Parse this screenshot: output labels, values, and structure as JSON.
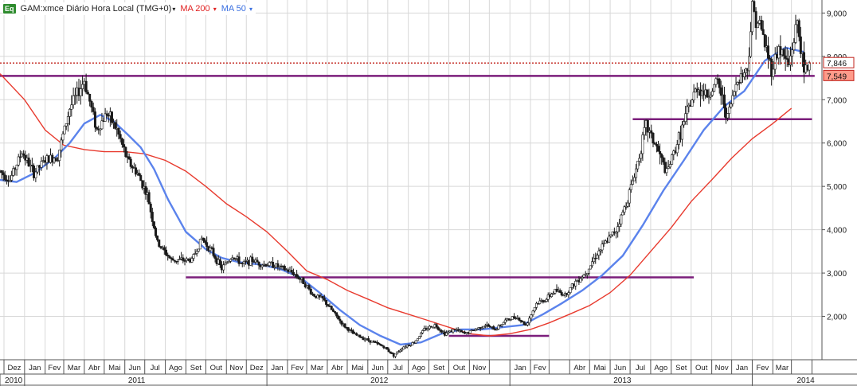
{
  "header": {
    "badge": "Eq",
    "title": "GAM:xmce Diário Hora Local (TMG+0)",
    "ma200_label": "MA 200",
    "ma50_label": "MA 50",
    "caret": "▾"
  },
  "colors": {
    "price_bar": "#1a1a1a",
    "ma200": "#e83a2e",
    "ma50": "#5b83ec",
    "hline": "#7b1e7b",
    "last_price_dotted": "#c0201a",
    "last_price_label_bg": "#ff9b8a",
    "gridline": "#d8d8d8"
  },
  "chart_data": {
    "type": "line",
    "series_kind": "ohlc-price-with-moving-averages",
    "y_axis": {
      "range": [
        1000,
        9300
      ],
      "ticks": [
        2000,
        3000,
        4000,
        5000,
        6000,
        7000,
        8000,
        9000
      ],
      "tick_labels": [
        "2,000",
        "3,000",
        "4,000",
        "5,000",
        "6,000",
        "7,000",
        "8,000",
        "9,000"
      ]
    },
    "x_axis": {
      "months": [
        "Dez",
        "Jan",
        "Fev",
        "Mar",
        "Abr",
        "Mai",
        "Jun",
        "Jul",
        "Ago",
        "Set",
        "Out",
        "Nov",
        "Dez",
        "Jan",
        "Fev",
        "Mar",
        "Abr",
        "Mai",
        "Jun",
        "Jul",
        "Ago",
        "Set",
        "Out",
        "Nov",
        "Jan",
        "Fev",
        "Abr",
        "Mai",
        "Jun",
        "Jul",
        "Ago",
        "Set",
        "Out",
        "Nov",
        "Jan",
        "Fev",
        "Mar"
      ],
      "years": [
        "2010",
        "2011",
        "2012",
        "2013",
        "2014"
      ]
    },
    "markers": {
      "last_price": "7,846",
      "reference_level": "7,549"
    },
    "price": {
      "name": "GAM:xmce",
      "points": [
        [
          "2010-11-25",
          5350
        ],
        [
          "2010-12-10",
          5150
        ],
        [
          "2010-12-28",
          5800
        ],
        [
          "2011-01-15",
          5300
        ],
        [
          "2011-02-01",
          5600
        ],
        [
          "2011-02-20",
          5700
        ],
        [
          "2011-03-10",
          6800
        ],
        [
          "2011-04-01",
          7450
        ],
        [
          "2011-04-20",
          6300
        ],
        [
          "2011-05-05",
          6700
        ],
        [
          "2011-05-20",
          6300
        ],
        [
          "2011-06-05",
          5600
        ],
        [
          "2011-06-20",
          5300
        ],
        [
          "2011-07-05",
          4800
        ],
        [
          "2011-07-20",
          3700
        ],
        [
          "2011-08-10",
          3300
        ],
        [
          "2011-08-25",
          3300
        ],
        [
          "2011-09-10",
          3300
        ],
        [
          "2011-09-25",
          3800
        ],
        [
          "2011-10-10",
          3500
        ],
        [
          "2011-10-25",
          3100
        ],
        [
          "2011-11-10",
          3400
        ],
        [
          "2011-11-25",
          3200
        ],
        [
          "2011-12-10",
          3300
        ],
        [
          "2011-12-25",
          3200
        ],
        [
          "2012-01-10",
          3200
        ],
        [
          "2012-01-25",
          3100
        ],
        [
          "2012-02-10",
          3000
        ],
        [
          "2012-02-25",
          2800
        ],
        [
          "2012-03-10",
          2500
        ],
        [
          "2012-03-25",
          2400
        ],
        [
          "2012-04-10",
          2100
        ],
        [
          "2012-04-25",
          1800
        ],
        [
          "2012-05-10",
          1600
        ],
        [
          "2012-05-25",
          1500
        ],
        [
          "2012-06-10",
          1400
        ],
        [
          "2012-06-25",
          1300
        ],
        [
          "2012-07-10",
          1100
        ],
        [
          "2012-07-25",
          1300
        ],
        [
          "2012-08-10",
          1400
        ],
        [
          "2012-08-25",
          1700
        ],
        [
          "2012-09-10",
          1800
        ],
        [
          "2012-09-25",
          1600
        ],
        [
          "2012-10-10",
          1700
        ],
        [
          "2012-10-25",
          1600
        ],
        [
          "2012-11-10",
          1700
        ],
        [
          "2012-11-25",
          1800
        ],
        [
          "2012-12-10",
          1700
        ],
        [
          "2012-12-25",
          1900
        ],
        [
          "2013-01-10",
          2000
        ],
        [
          "2013-01-25",
          1800
        ],
        [
          "2013-02-10",
          2300
        ],
        [
          "2013-02-25",
          2400
        ],
        [
          "2013-03-10",
          2600
        ],
        [
          "2013-03-25",
          2500
        ],
        [
          "2013-04-10",
          2800
        ],
        [
          "2013-04-25",
          3000
        ],
        [
          "2013-05-10",
          3400
        ],
        [
          "2013-05-25",
          3700
        ],
        [
          "2013-06-10",
          4000
        ],
        [
          "2013-06-25",
          4600
        ],
        [
          "2013-07-10",
          5400
        ],
        [
          "2013-07-25",
          6400
        ],
        [
          "2013-08-10",
          5900
        ],
        [
          "2013-08-25",
          5300
        ],
        [
          "2013-09-10",
          6000
        ],
        [
          "2013-09-25",
          6700
        ],
        [
          "2013-10-10",
          7300
        ],
        [
          "2013-10-25",
          7100
        ],
        [
          "2013-11-10",
          7400
        ],
        [
          "2013-11-25",
          6600
        ],
        [
          "2013-12-10",
          7500
        ],
        [
          "2013-12-25",
          7700
        ],
        [
          "2014-01-01",
          9100
        ],
        [
          "2014-01-15",
          8600
        ],
        [
          "2014-01-30",
          7700
        ],
        [
          "2014-02-10",
          8200
        ],
        [
          "2014-02-25",
          7800
        ],
        [
          "2014-03-10",
          8800
        ],
        [
          "2014-03-20",
          7600
        ],
        [
          "2014-03-28",
          7846
        ]
      ]
    },
    "ma200": {
      "label": "MA 200",
      "points": [
        [
          "2010-11-25",
          7600
        ],
        [
          "2011-01-01",
          7000
        ],
        [
          "2011-02-01",
          6300
        ],
        [
          "2011-03-01",
          5950
        ],
        [
          "2011-04-01",
          5850
        ],
        [
          "2011-05-01",
          5800
        ],
        [
          "2011-06-01",
          5800
        ],
        [
          "2011-07-01",
          5750
        ],
        [
          "2011-08-01",
          5600
        ],
        [
          "2011-09-01",
          5350
        ],
        [
          "2011-10-01",
          5000
        ],
        [
          "2011-11-01",
          4600
        ],
        [
          "2011-12-01",
          4300
        ],
        [
          "2012-01-01",
          3950
        ],
        [
          "2012-02-01",
          3500
        ],
        [
          "2012-03-01",
          3050
        ],
        [
          "2012-04-01",
          2850
        ],
        [
          "2012-05-01",
          2600
        ],
        [
          "2012-06-01",
          2400
        ],
        [
          "2012-07-01",
          2200
        ],
        [
          "2012-08-01",
          2050
        ],
        [
          "2012-09-01",
          1900
        ],
        [
          "2012-10-01",
          1750
        ],
        [
          "2012-11-01",
          1600
        ],
        [
          "2012-12-01",
          1550
        ],
        [
          "2013-01-01",
          1600
        ],
        [
          "2013-02-01",
          1700
        ],
        [
          "2013-03-01",
          1850
        ],
        [
          "2013-04-01",
          2050
        ],
        [
          "2013-05-01",
          2250
        ],
        [
          "2013-06-01",
          2550
        ],
        [
          "2013-07-01",
          2950
        ],
        [
          "2013-08-01",
          3500
        ],
        [
          "2013-09-01",
          4050
        ],
        [
          "2013-10-01",
          4650
        ],
        [
          "2013-11-01",
          5150
        ],
        [
          "2013-12-01",
          5650
        ],
        [
          "2014-01-01",
          6100
        ],
        [
          "2014-02-01",
          6450
        ],
        [
          "2014-03-01",
          6800
        ]
      ]
    },
    "ma50": {
      "label": "MA 50",
      "points": [
        [
          "2010-11-25",
          5150
        ],
        [
          "2010-12-20",
          5100
        ],
        [
          "2011-01-15",
          5300
        ],
        [
          "2011-02-15",
          5650
        ],
        [
          "2011-03-10",
          6000
        ],
        [
          "2011-04-01",
          6450
        ],
        [
          "2011-04-25",
          6650
        ],
        [
          "2011-05-15",
          6500
        ],
        [
          "2011-06-05",
          6200
        ],
        [
          "2011-06-25",
          5900
        ],
        [
          "2011-07-15",
          5400
        ],
        [
          "2011-08-05",
          4700
        ],
        [
          "2011-09-01",
          3950
        ],
        [
          "2011-10-01",
          3550
        ],
        [
          "2011-10-25",
          3350
        ],
        [
          "2011-11-20",
          3250
        ],
        [
          "2011-12-20",
          3200
        ],
        [
          "2012-01-20",
          3100
        ],
        [
          "2012-02-20",
          2900
        ],
        [
          "2012-03-20",
          2550
        ],
        [
          "2012-04-20",
          2150
        ],
        [
          "2012-05-20",
          1800
        ],
        [
          "2012-06-20",
          1550
        ],
        [
          "2012-07-20",
          1350
        ],
        [
          "2012-08-20",
          1400
        ],
        [
          "2012-09-20",
          1600
        ],
        [
          "2012-10-20",
          1700
        ],
        [
          "2012-11-20",
          1700
        ],
        [
          "2012-12-20",
          1750
        ],
        [
          "2013-01-20",
          1800
        ],
        [
          "2013-02-20",
          2050
        ],
        [
          "2013-03-20",
          2300
        ],
        [
          "2013-04-20",
          2600
        ],
        [
          "2013-05-20",
          2950
        ],
        [
          "2013-06-20",
          3400
        ],
        [
          "2013-07-20",
          4100
        ],
        [
          "2013-08-20",
          4900
        ],
        [
          "2013-09-20",
          5600
        ],
        [
          "2013-10-20",
          6300
        ],
        [
          "2013-11-20",
          6850
        ],
        [
          "2013-12-20",
          7200
        ],
        [
          "2014-01-20",
          7900
        ],
        [
          "2014-02-20",
          8200
        ],
        [
          "2014-03-20",
          8100
        ]
      ]
    },
    "horizontal_lines": [
      {
        "y": 7549,
        "from": "2010-11-25",
        "to": "2014-04-05"
      },
      {
        "y": 6550,
        "from": "2013-07-05",
        "to": "2014-04-01"
      },
      {
        "y": 2900,
        "from": "2011-09-01",
        "to": "2013-10-05"
      },
      {
        "y": 1550,
        "from": "2012-10-01",
        "to": "2013-03-01"
      }
    ]
  }
}
